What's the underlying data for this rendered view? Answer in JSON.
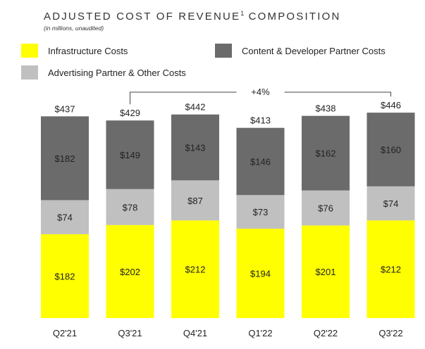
{
  "header": {
    "title_main": "ADJUSTED COST OF REVENUE",
    "title_sup": "1",
    "title_tail": " COMPOSITION",
    "subtitle": "(in millions, unaudited)"
  },
  "chart_data": {
    "type": "bar",
    "stacked": true,
    "categories": [
      "Q2'21",
      "Q3'21",
      "Q4'21",
      "Q1'22",
      "Q2'22",
      "Q3'22"
    ],
    "series": [
      {
        "name": "Infrastructure Costs",
        "color": "#ffff00",
        "values": [
          182,
          202,
          212,
          194,
          201,
          212
        ],
        "labels": [
          "$182",
          "$202",
          "$212",
          "$194",
          "$201",
          "$212"
        ]
      },
      {
        "name": "Advertising Partner & Other Costs",
        "color": "#c0c0c0",
        "values": [
          74,
          78,
          87,
          73,
          76,
          74
        ],
        "labels": [
          "$74",
          "$78",
          "$87",
          "$73",
          "$76",
          "$74"
        ]
      },
      {
        "name": "Content & Developer Partner Costs",
        "color": "#6b6b6b",
        "values": [
          182,
          149,
          143,
          146,
          162,
          160
        ],
        "labels": [
          "$182",
          "$149",
          "$143",
          "$146",
          "$162",
          "$160"
        ]
      }
    ],
    "totals": [
      "$437",
      "$429",
      "$442",
      "$413",
      "$438",
      "$446"
    ],
    "annotation": {
      "text": "+4%",
      "from": "Q3'21",
      "to": "Q3'22"
    },
    "legend": [
      "Infrastructure Costs",
      "Content & Developer Partner Costs",
      "Advertising Partner & Other Costs"
    ],
    "ylim": [
      0,
      460
    ],
    "grid": false
  }
}
